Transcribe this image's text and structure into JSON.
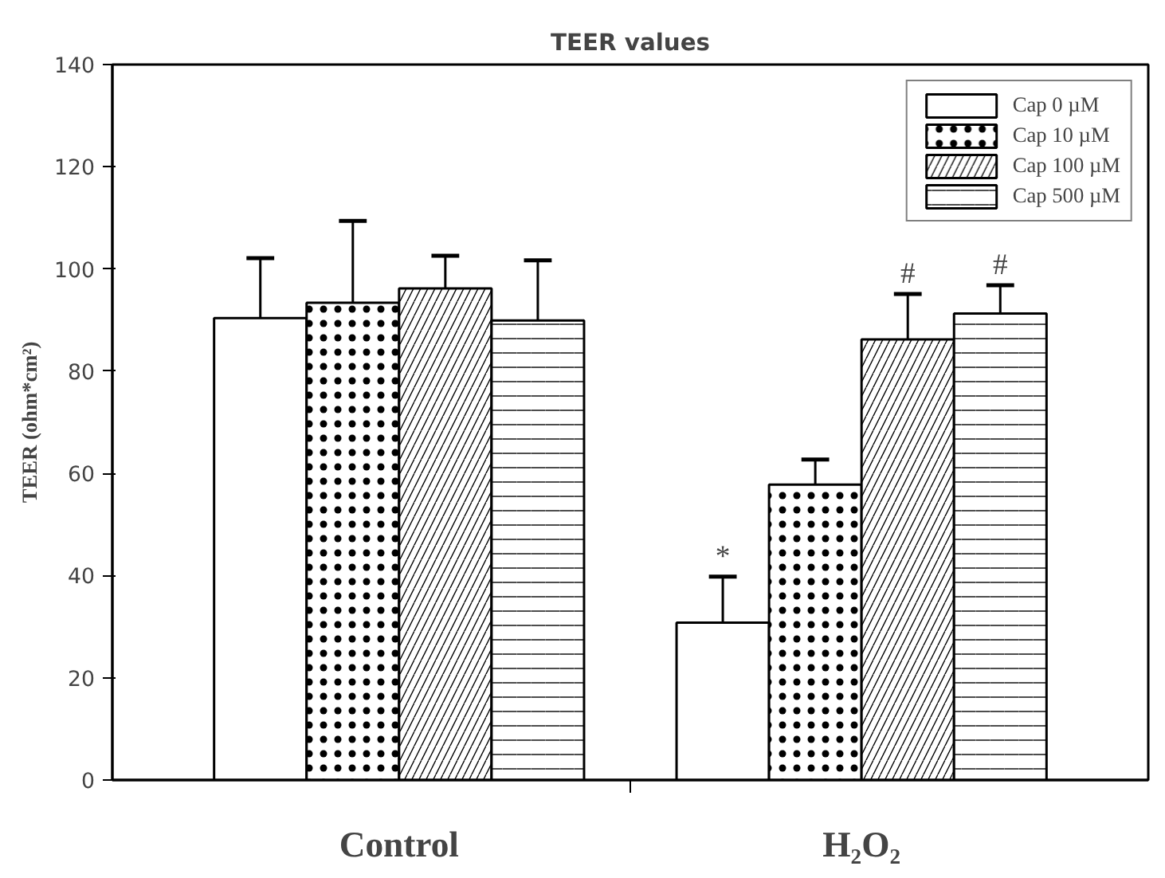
{
  "chart_data": {
    "type": "bar",
    "title": "TEER values",
    "ylabel": "TEER (ohm*cm²)",
    "categories": [
      "Control",
      "H₂O₂"
    ],
    "series": [
      {
        "name": "Cap 0 µM",
        "color": "#ffffff",
        "values": [
          90.4,
          30.8
        ],
        "errors": [
          [
            90.4,
            102.1
          ],
          [
            30.8,
            39.8
          ]
        ],
        "value_labels": [
          null,
          "*"
        ]
      },
      {
        "name": "Cap 10 µM",
        "color": "#ffffff",
        "values": [
          93.4,
          57.8
        ],
        "errors": [
          [
            93.4,
            109.4
          ],
          [
            57.8,
            62.7
          ]
        ]
      },
      {
        "name": "Cap 100 µM",
        "color": "#ffffff",
        "values": [
          96.2,
          86.2
        ],
        "errors": [
          [
            96.2,
            102.6
          ],
          [
            86.2,
            95.1
          ]
        ],
        "value_labels": [
          null,
          "#"
        ]
      },
      {
        "name": "Cap 500 µM",
        "color": "#ffffff",
        "values": [
          89.9,
          91.3
        ],
        "errors": [
          [
            89.9,
            101.7
          ],
          [
            91.3,
            96.8
          ]
        ],
        "value_labels": [
          null,
          "#"
        ]
      }
    ],
    "ylim": [
      0,
      140
    ],
    "yticks": [
      0,
      20,
      40,
      60,
      80,
      100,
      120,
      140
    ],
    "legend": "top right",
    "grid": false
  }
}
